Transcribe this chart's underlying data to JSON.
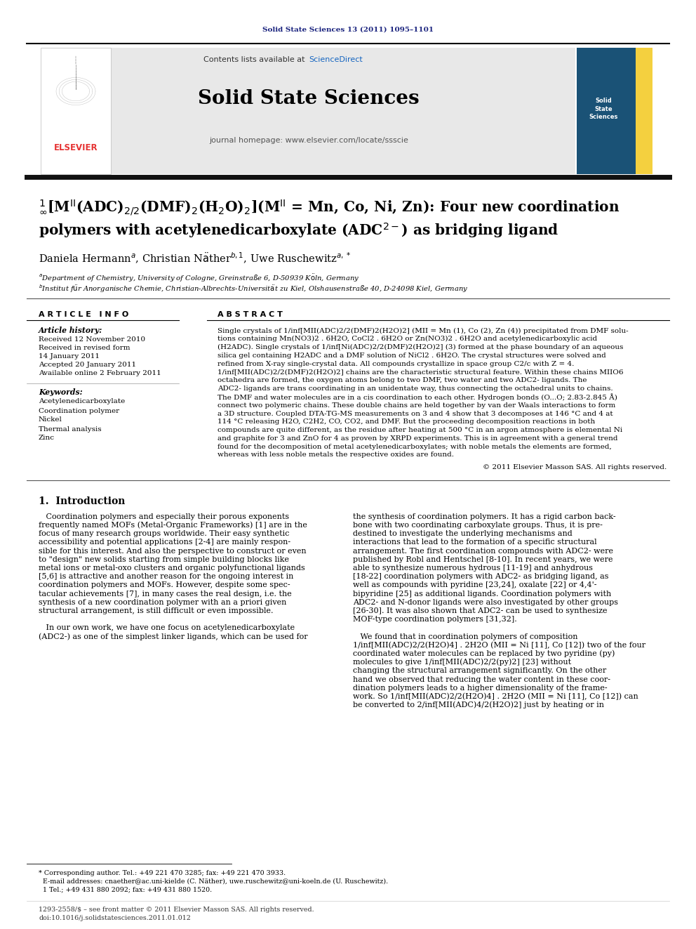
{
  "figsize": [
    9.92,
    13.23
  ],
  "dpi": 100,
  "bg_color": "#ffffff",
  "journal_ref": "Solid State Sciences 13 (2011) 1095–1101",
  "journal_ref_color": "#1a237e",
  "header_bg": "#e8e8e8",
  "header_text1": "Contents lists available at ",
  "header_sciencedirect": "ScienceDirect",
  "header_sciencedirect_color": "#1565c0",
  "journal_title": "Solid State Sciences",
  "journal_homepage": "journal homepage: www.elsevier.com/locate/ssscie",
  "article_info_title": "A R T I C L E   I N F O",
  "article_history_title": "Article history:",
  "received": "Received 12 November 2010",
  "received_revised": "Received in revised form",
  "received_revised2": "14 January 2011",
  "accepted": "Accepted 20 January 2011",
  "available": "Available online 2 February 2011",
  "keywords_title": "Keywords:",
  "keywords": [
    "Acetylenedicarboxylate",
    "Coordination polymer",
    "Nickel",
    "Thermal analysis",
    "Zinc"
  ],
  "abstract_title": "A B S T R A C T",
  "copyright": "© 2011 Elsevier Masson SAS. All rights reserved.",
  "section1_title": "1.  Introduction",
  "footnote1": "* Corresponding author. Tel.: +49 221 470 3285; fax: +49 221 470 3933.",
  "footnote2": "  E-mail addresses: cnaether@ac.uni-kielde (C. Näther), uwe.ruschewitz@uni-koeln.de (U. Ruschewitz).",
  "footnote3": "  1 Tel.; +49 431 880 2092; fax: +49 431 880 1520.",
  "footer_issn": "1293-2558/$ – see front matter © 2011 Elsevier Masson SAS. All rights reserved.",
  "footer_doi": "doi:10.1016/j.solidstatesciences.2011.01.012"
}
